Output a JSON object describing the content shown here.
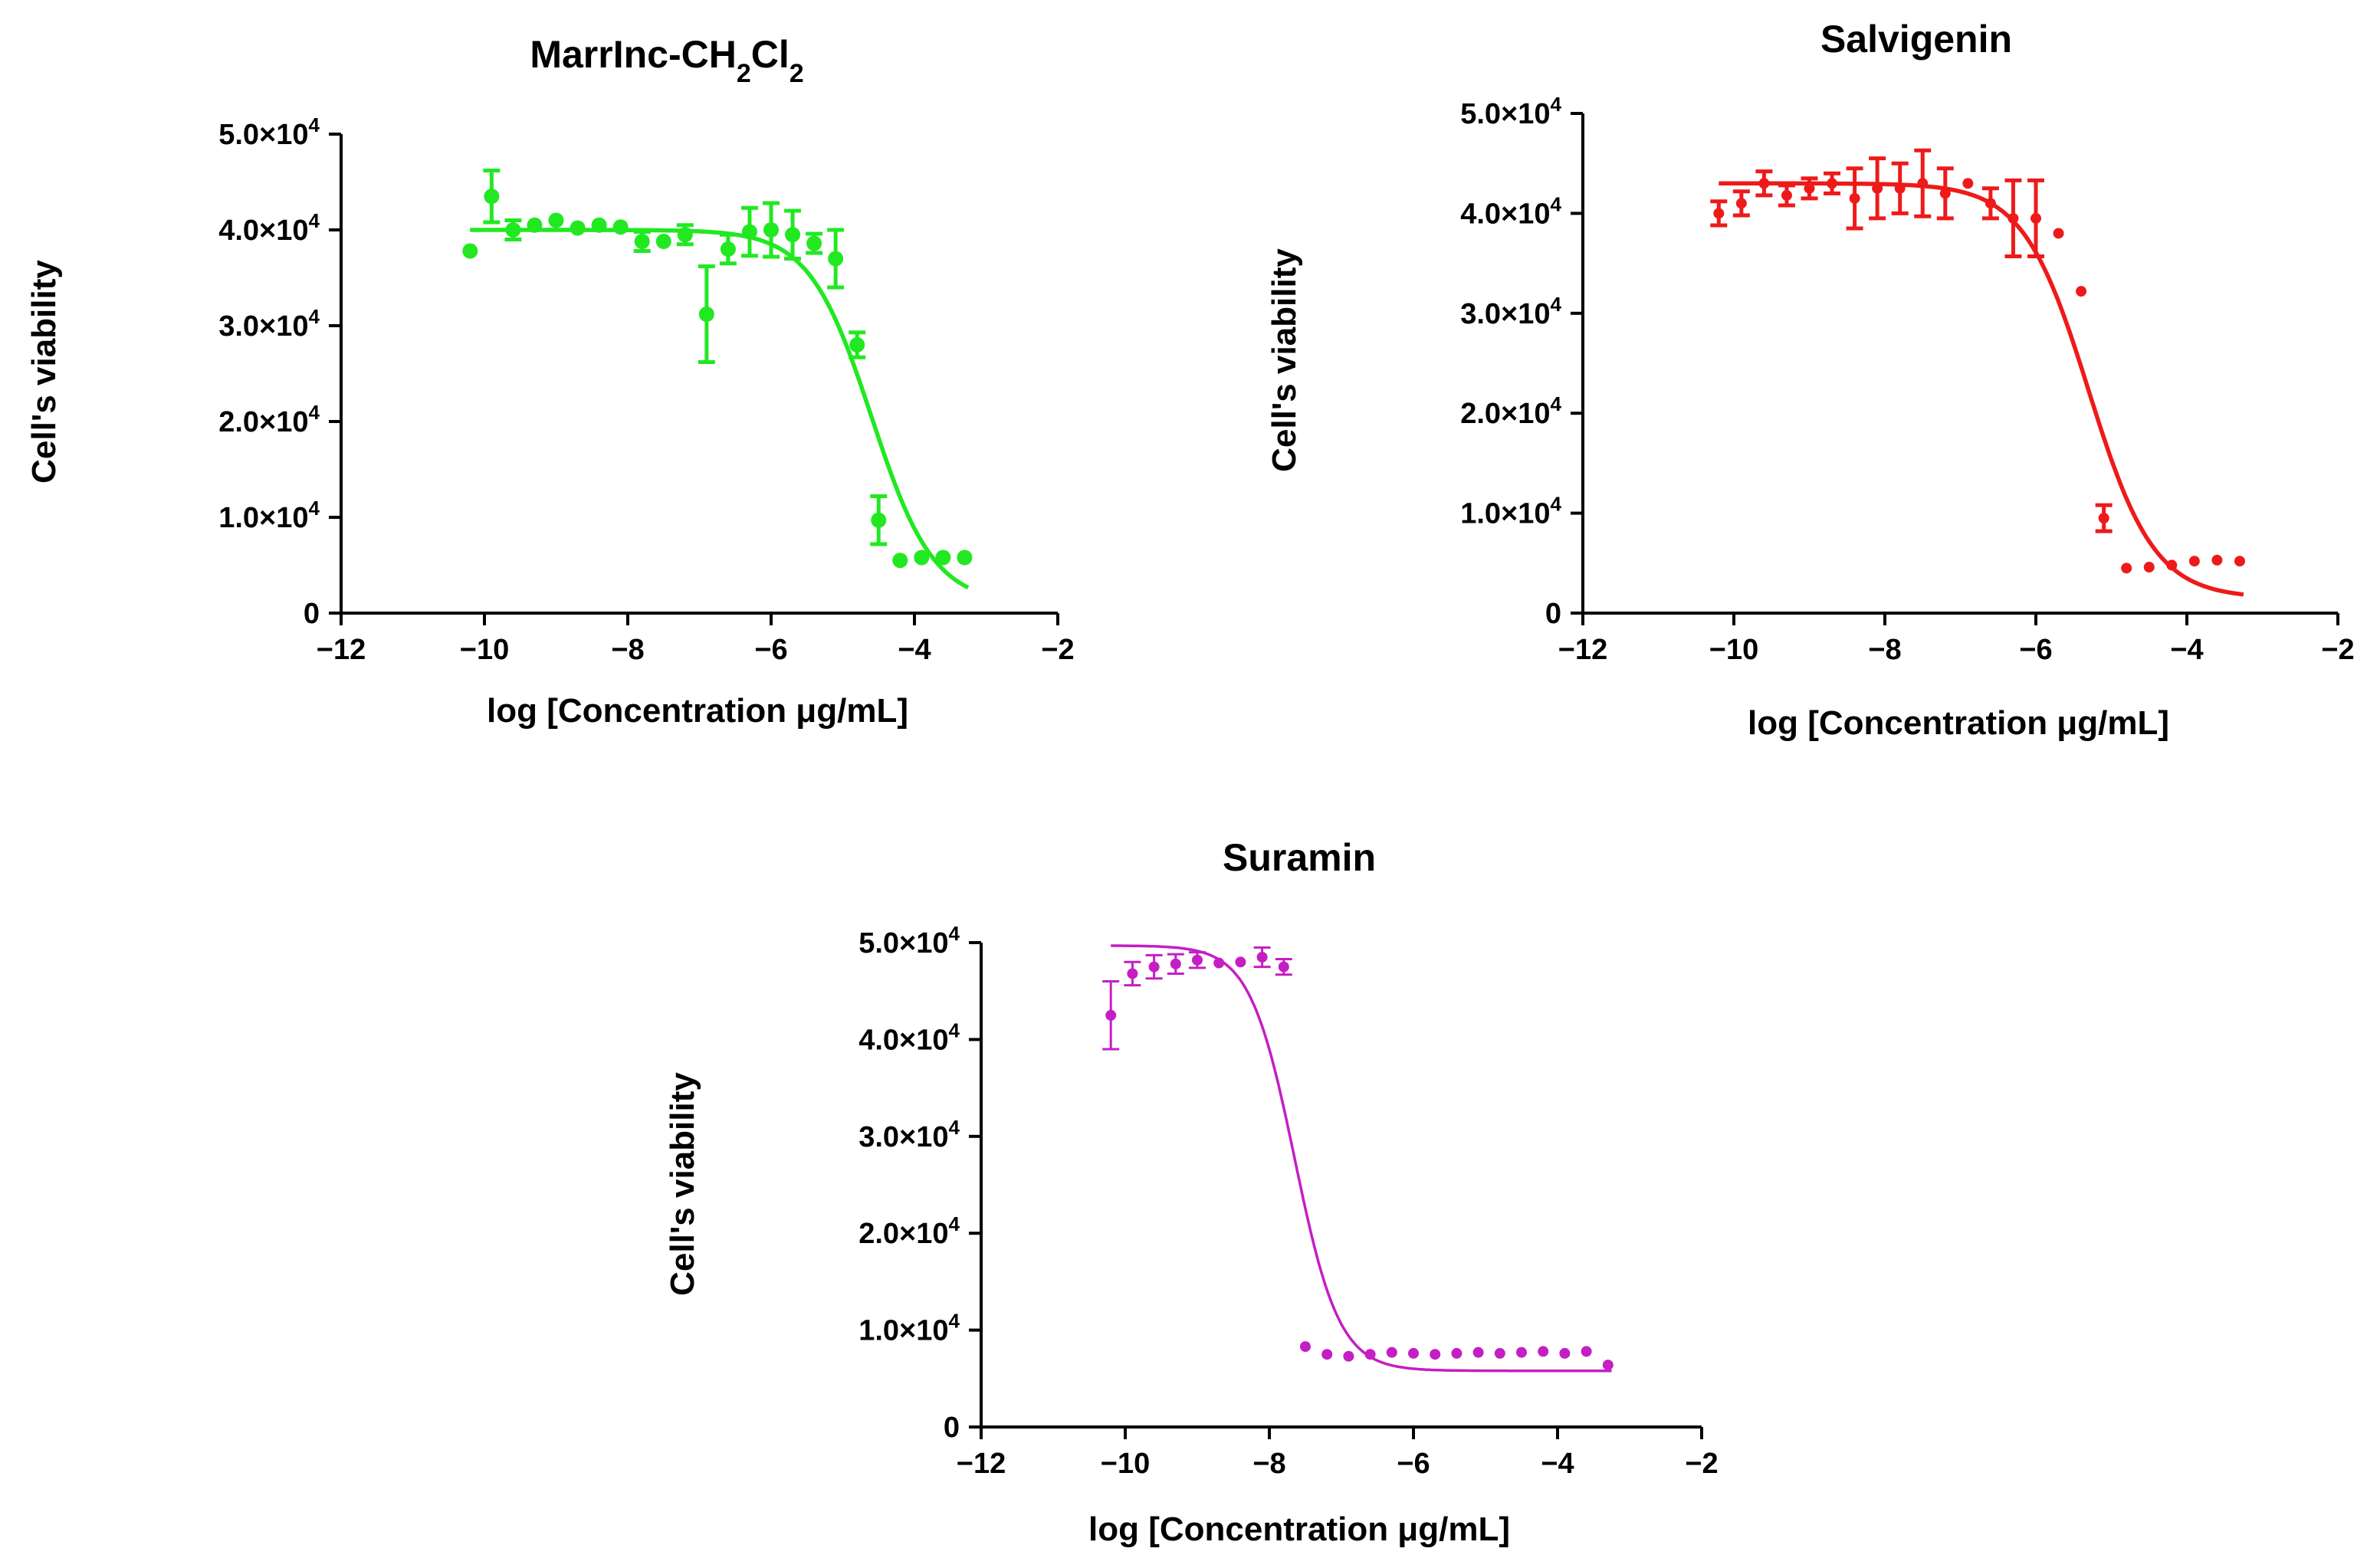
{
  "chart_data": [
    {
      "type": "scatter",
      "panel": "top-left",
      "title": "MarrInc-CH2Cl2",
      "title_parts": [
        "MarrInc-CH",
        "2",
        "Cl",
        "2"
      ],
      "xlabel": "log [Concentration μg/mL]",
      "ylabel": "Cell's viability",
      "xlim": [
        -12,
        -2
      ],
      "ylim": [
        0,
        50000
      ],
      "xticks": [
        -12,
        -10,
        -8,
        -6,
        -4,
        -2
      ],
      "xtick_labels": [
        "−12",
        "−10",
        "−8",
        "−6",
        "−4",
        "−2"
      ],
      "yticks": [
        0,
        10000,
        20000,
        30000,
        40000,
        50000
      ],
      "ytick_mantissas": [
        "0",
        "1.0×10",
        "2.0×10",
        "3.0×10",
        "4.0×10",
        "5.0×10"
      ],
      "ytick_exponent": "4",
      "color": "#22e822",
      "marker_size": 10,
      "fit": {
        "top": 40000,
        "bottom": 1000,
        "logIC50": -4.6,
        "hill": -1.0,
        "x_start": -10.2,
        "x_end": -3.25
      },
      "points": [
        {
          "x": -10.2,
          "y": 37800,
          "err": 0
        },
        {
          "x": -9.9,
          "y": 43500,
          "err": 2700
        },
        {
          "x": -9.6,
          "y": 40000,
          "err": 1000
        },
        {
          "x": -9.3,
          "y": 40500,
          "err": 0
        },
        {
          "x": -9.0,
          "y": 41000,
          "err": 0
        },
        {
          "x": -8.7,
          "y": 40200,
          "err": 0
        },
        {
          "x": -8.4,
          "y": 40500,
          "err": 0
        },
        {
          "x": -8.1,
          "y": 40300,
          "err": 0
        },
        {
          "x": -7.8,
          "y": 38800,
          "err": 1000
        },
        {
          "x": -7.5,
          "y": 38800,
          "err": 0
        },
        {
          "x": -7.2,
          "y": 39500,
          "err": 1000
        },
        {
          "x": -6.9,
          "y": 31200,
          "err": 5000
        },
        {
          "x": -6.6,
          "y": 38000,
          "err": 1500
        },
        {
          "x": -6.3,
          "y": 39800,
          "err": 2500
        },
        {
          "x": -6.0,
          "y": 40000,
          "err": 2800
        },
        {
          "x": -5.7,
          "y": 39500,
          "err": 2500
        },
        {
          "x": -5.4,
          "y": 38600,
          "err": 1000
        },
        {
          "x": -5.1,
          "y": 37000,
          "err": 3000
        },
        {
          "x": -4.8,
          "y": 28000,
          "err": 1300
        },
        {
          "x": -4.5,
          "y": 9700,
          "err": 2500
        },
        {
          "x": -4.2,
          "y": 5500,
          "err": 0
        },
        {
          "x": -3.9,
          "y": 5800,
          "err": 0
        },
        {
          "x": -3.6,
          "y": 5800,
          "err": 0
        },
        {
          "x": -3.3,
          "y": 5800,
          "err": 0
        }
      ]
    },
    {
      "type": "scatter",
      "panel": "top-right",
      "title": "Salvigenin",
      "title_parts": [
        "Salvigenin"
      ],
      "xlabel": "log [Concentration μg/mL]",
      "ylabel": "Cell's viability",
      "xlim": [
        -12,
        -2
      ],
      "ylim": [
        0,
        50000
      ],
      "xticks": [
        -12,
        -10,
        -8,
        -6,
        -4,
        -2
      ],
      "xtick_labels": [
        "−12",
        "−10",
        "−8",
        "−6",
        "−4",
        "−2"
      ],
      "yticks": [
        0,
        10000,
        20000,
        30000,
        40000,
        50000
      ],
      "ytick_mantissas": [
        "0",
        "1.0×10",
        "2.0×10",
        "3.0×10",
        "4.0×10",
        "5.0×10"
      ],
      "ytick_exponent": "4",
      "color": "#ee1a1a",
      "marker_size": 7,
      "fit": {
        "top": 43000,
        "bottom": 1500,
        "logIC50": -5.3,
        "hill": -1.0,
        "x_start": -10.2,
        "x_end": -3.25
      },
      "points": [
        {
          "x": -10.2,
          "y": 40000,
          "err": 1200
        },
        {
          "x": -9.9,
          "y": 41000,
          "err": 1200
        },
        {
          "x": -9.6,
          "y": 43000,
          "err": 1200
        },
        {
          "x": -9.3,
          "y": 41800,
          "err": 1000
        },
        {
          "x": -9.0,
          "y": 42500,
          "err": 1000
        },
        {
          "x": -8.7,
          "y": 43000,
          "err": 1000
        },
        {
          "x": -8.4,
          "y": 41500,
          "err": 3000
        },
        {
          "x": -8.1,
          "y": 42500,
          "err": 3000
        },
        {
          "x": -7.8,
          "y": 42500,
          "err": 2500
        },
        {
          "x": -7.5,
          "y": 43000,
          "err": 3300
        },
        {
          "x": -7.2,
          "y": 42000,
          "err": 2500
        },
        {
          "x": -6.9,
          "y": 43000,
          "err": 0
        },
        {
          "x": -6.6,
          "y": 41000,
          "err": 1500
        },
        {
          "x": -6.3,
          "y": 39500,
          "err": 3800
        },
        {
          "x": -6.0,
          "y": 39500,
          "err": 3800
        },
        {
          "x": -5.7,
          "y": 38000,
          "err": 0
        },
        {
          "x": -5.4,
          "y": 32200,
          "err": 0
        },
        {
          "x": -5.1,
          "y": 9500,
          "err": 1300
        },
        {
          "x": -4.8,
          "y": 4500,
          "err": 0
        },
        {
          "x": -4.5,
          "y": 4600,
          "err": 0
        },
        {
          "x": -4.2,
          "y": 4800,
          "err": 0
        },
        {
          "x": -3.9,
          "y": 5200,
          "err": 0
        },
        {
          "x": -3.6,
          "y": 5300,
          "err": 0
        },
        {
          "x": -3.3,
          "y": 5200,
          "err": 0
        }
      ]
    },
    {
      "type": "scatter",
      "panel": "bottom-center",
      "title": "Suramin",
      "title_parts": [
        "Suramin"
      ],
      "xlabel": "log [Concentration μg/mL]",
      "ylabel": "Cell's viability",
      "xlim": [
        -12,
        -2
      ],
      "ylim": [
        0,
        50000
      ],
      "xticks": [
        -12,
        -10,
        -8,
        -6,
        -4,
        -2
      ],
      "xtick_labels": [
        "−12",
        "−10",
        "−8",
        "−6",
        "−4",
        "−2"
      ],
      "yticks": [
        0,
        10000,
        20000,
        30000,
        40000,
        50000
      ],
      "ytick_mantissas": [
        "0",
        "1.0×10",
        "2.0×10",
        "3.0×10",
        "4.0×10",
        "5.0×10"
      ],
      "ytick_exponent": "4",
      "color": "#c41ec4",
      "marker_size": 7,
      "fit": {
        "top": 49700,
        "bottom": 5800,
        "logIC50": -7.65,
        "hill": -1.4,
        "x_start": -10.2,
        "x_end": -3.25
      },
      "points": [
        {
          "x": -10.2,
          "y": 42500,
          "err": 3500
        },
        {
          "x": -9.9,
          "y": 46800,
          "err": 1200
        },
        {
          "x": -9.6,
          "y": 47500,
          "err": 1200
        },
        {
          "x": -9.3,
          "y": 47800,
          "err": 1000
        },
        {
          "x": -9.0,
          "y": 48200,
          "err": 800
        },
        {
          "x": -8.7,
          "y": 47900,
          "err": 0
        },
        {
          "x": -8.4,
          "y": 48000,
          "err": 0
        },
        {
          "x": -8.1,
          "y": 48500,
          "err": 1000
        },
        {
          "x": -7.8,
          "y": 47500,
          "err": 800
        },
        {
          "x": -7.5,
          "y": 8300,
          "err": 0
        },
        {
          "x": -7.2,
          "y": 7500,
          "err": 0
        },
        {
          "x": -6.9,
          "y": 7300,
          "err": 0
        },
        {
          "x": -6.6,
          "y": 7500,
          "err": 0
        },
        {
          "x": -6.3,
          "y": 7700,
          "err": 0
        },
        {
          "x": -6.0,
          "y": 7600,
          "err": 0
        },
        {
          "x": -5.7,
          "y": 7500,
          "err": 0
        },
        {
          "x": -5.4,
          "y": 7600,
          "err": 0
        },
        {
          "x": -5.1,
          "y": 7700,
          "err": 0
        },
        {
          "x": -4.8,
          "y": 7600,
          "err": 0
        },
        {
          "x": -4.5,
          "y": 7700,
          "err": 0
        },
        {
          "x": -4.2,
          "y": 7800,
          "err": 0
        },
        {
          "x": -3.9,
          "y": 7600,
          "err": 0
        },
        {
          "x": -3.6,
          "y": 7800,
          "err": 0
        },
        {
          "x": -3.3,
          "y": 6400,
          "err": 0
        }
      ]
    }
  ]
}
